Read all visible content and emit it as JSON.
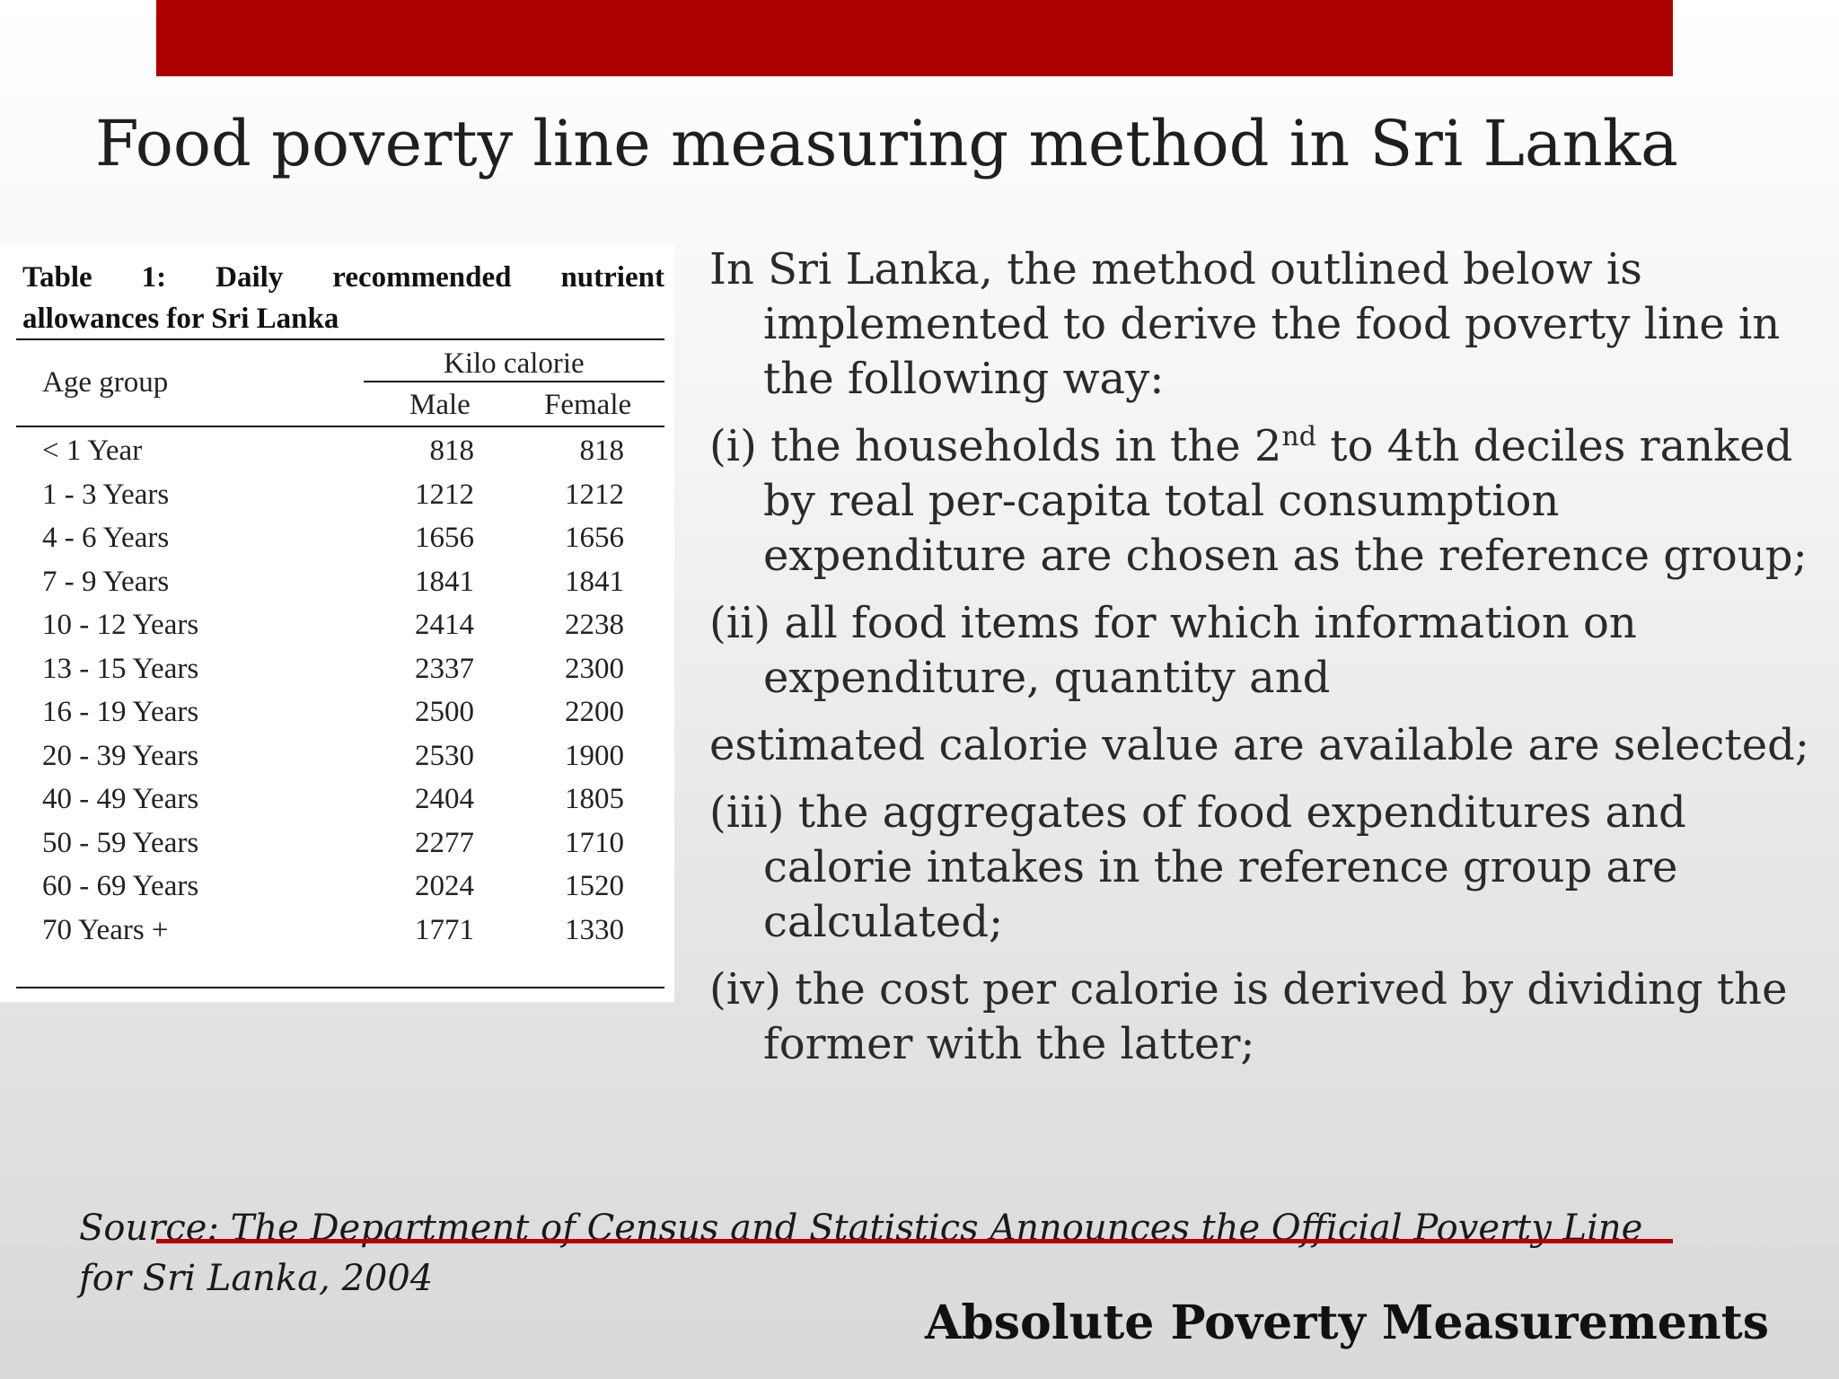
{
  "slide": {
    "title": "Food poverty line measuring method in Sri Lanka",
    "footer_title": "Absolute Poverty Measurements",
    "source": "Source: The Department of Census and Statistics Announces the Official Poverty Line for Sri Lanka, 2004",
    "accent_color": "#ab0000"
  },
  "table": {
    "caption_words": [
      "Table",
      "1:",
      "Daily",
      "recommended",
      "nutrient"
    ],
    "caption_line2": "allowances for Sri Lanka",
    "col_age": "Age group",
    "col_group": "Kilo calorie",
    "col_male": "Male",
    "col_female": "Female",
    "rows": [
      {
        "age": "< 1 Year",
        "male": "818",
        "female": "818"
      },
      {
        "age": "1 - 3 Years",
        "male": "1212",
        "female": "1212"
      },
      {
        "age": "4 - 6 Years",
        "male": "1656",
        "female": "1656"
      },
      {
        "age": "7 - 9 Years",
        "male": "1841",
        "female": "1841"
      },
      {
        "age": "10 - 12 Years",
        "male": "2414",
        "female": "2238"
      },
      {
        "age": "13 - 15 Years",
        "male": "2337",
        "female": "2300"
      },
      {
        "age": "16 - 19 Years",
        "male": "2500",
        "female": "2200"
      },
      {
        "age": "20 - 39 Years",
        "male": "2530",
        "female": "1900"
      },
      {
        "age": "40 - 49 Years",
        "male": "2404",
        "female": "1805"
      },
      {
        "age": "50 - 59 Years",
        "male": "2277",
        "female": "1710"
      },
      {
        "age": "60 - 69 Years",
        "male": "2024",
        "female": "1520"
      },
      {
        "age": "70 Years +",
        "male": "1771",
        "female": "1330"
      }
    ]
  },
  "body": {
    "intro": "In Sri Lanka, the method outlined below is implemented to derive the food poverty line in the following way:",
    "item1_pre": " (i) the households in the 2",
    "item1_sup": "nd",
    "item1_post": " to 4th deciles ranked by real per-capita total consumption expenditure are chosen as the reference group;",
    "item2": "(ii) all food items for which information on expenditure, quantity and",
    "item2_cont": "estimated calorie value are available are selected;",
    "item3": "(iii) the aggregates of food expenditures and calorie intakes in the reference group are calculated;",
    "item4": "(iv) the cost per calorie is derived by dividing the former with the latter;"
  }
}
